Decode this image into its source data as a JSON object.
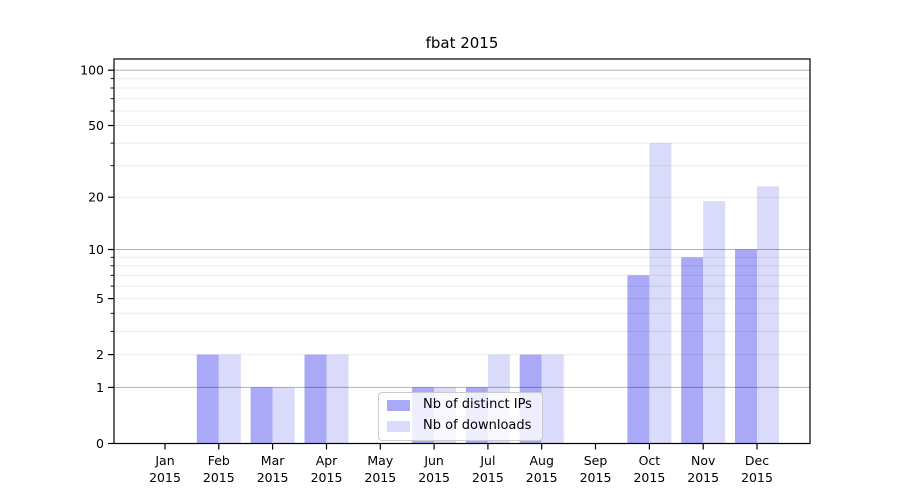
{
  "chart_data": {
    "type": "bar",
    "title": "fbat 2015",
    "categories": [
      "Jan",
      "Feb",
      "Mar",
      "Apr",
      "May",
      "Jun",
      "Jul",
      "Aug",
      "Sep",
      "Oct",
      "Nov",
      "Dec"
    ],
    "x_year_label": "2015",
    "series": [
      {
        "name": "Nb of distinct IPs",
        "color": "#a9a9f7",
        "values": [
          0,
          2,
          1,
          2,
          0,
          1,
          1,
          2,
          0,
          7,
          9,
          10
        ]
      },
      {
        "name": "Nb of downloads",
        "color": "#dadafa",
        "values": [
          0,
          2,
          1,
          2,
          0,
          1,
          2,
          2,
          0,
          40,
          19,
          23
        ]
      }
    ],
    "yscale": "log1p",
    "ylim": [
      0,
      115
    ],
    "yticks": [
      100,
      50,
      20,
      10,
      5,
      2,
      1,
      0
    ],
    "minor_yticks": [
      3,
      4,
      6,
      7,
      8,
      9,
      30,
      40,
      60,
      70,
      80,
      90
    ],
    "major_gridlines": [
      1,
      10,
      100
    ],
    "minor_gridlines": [
      2,
      3,
      4,
      5,
      6,
      7,
      8,
      9,
      20,
      30,
      40,
      50,
      60,
      70,
      80,
      90
    ],
    "grid": true,
    "legend_position": "lower center",
    "colors": {
      "spine": "#000000",
      "grid_major": "rgba(0,0,0,0.30)",
      "grid_minor": "rgba(0,0,0,0.08)",
      "tick_label": "#000000"
    }
  }
}
